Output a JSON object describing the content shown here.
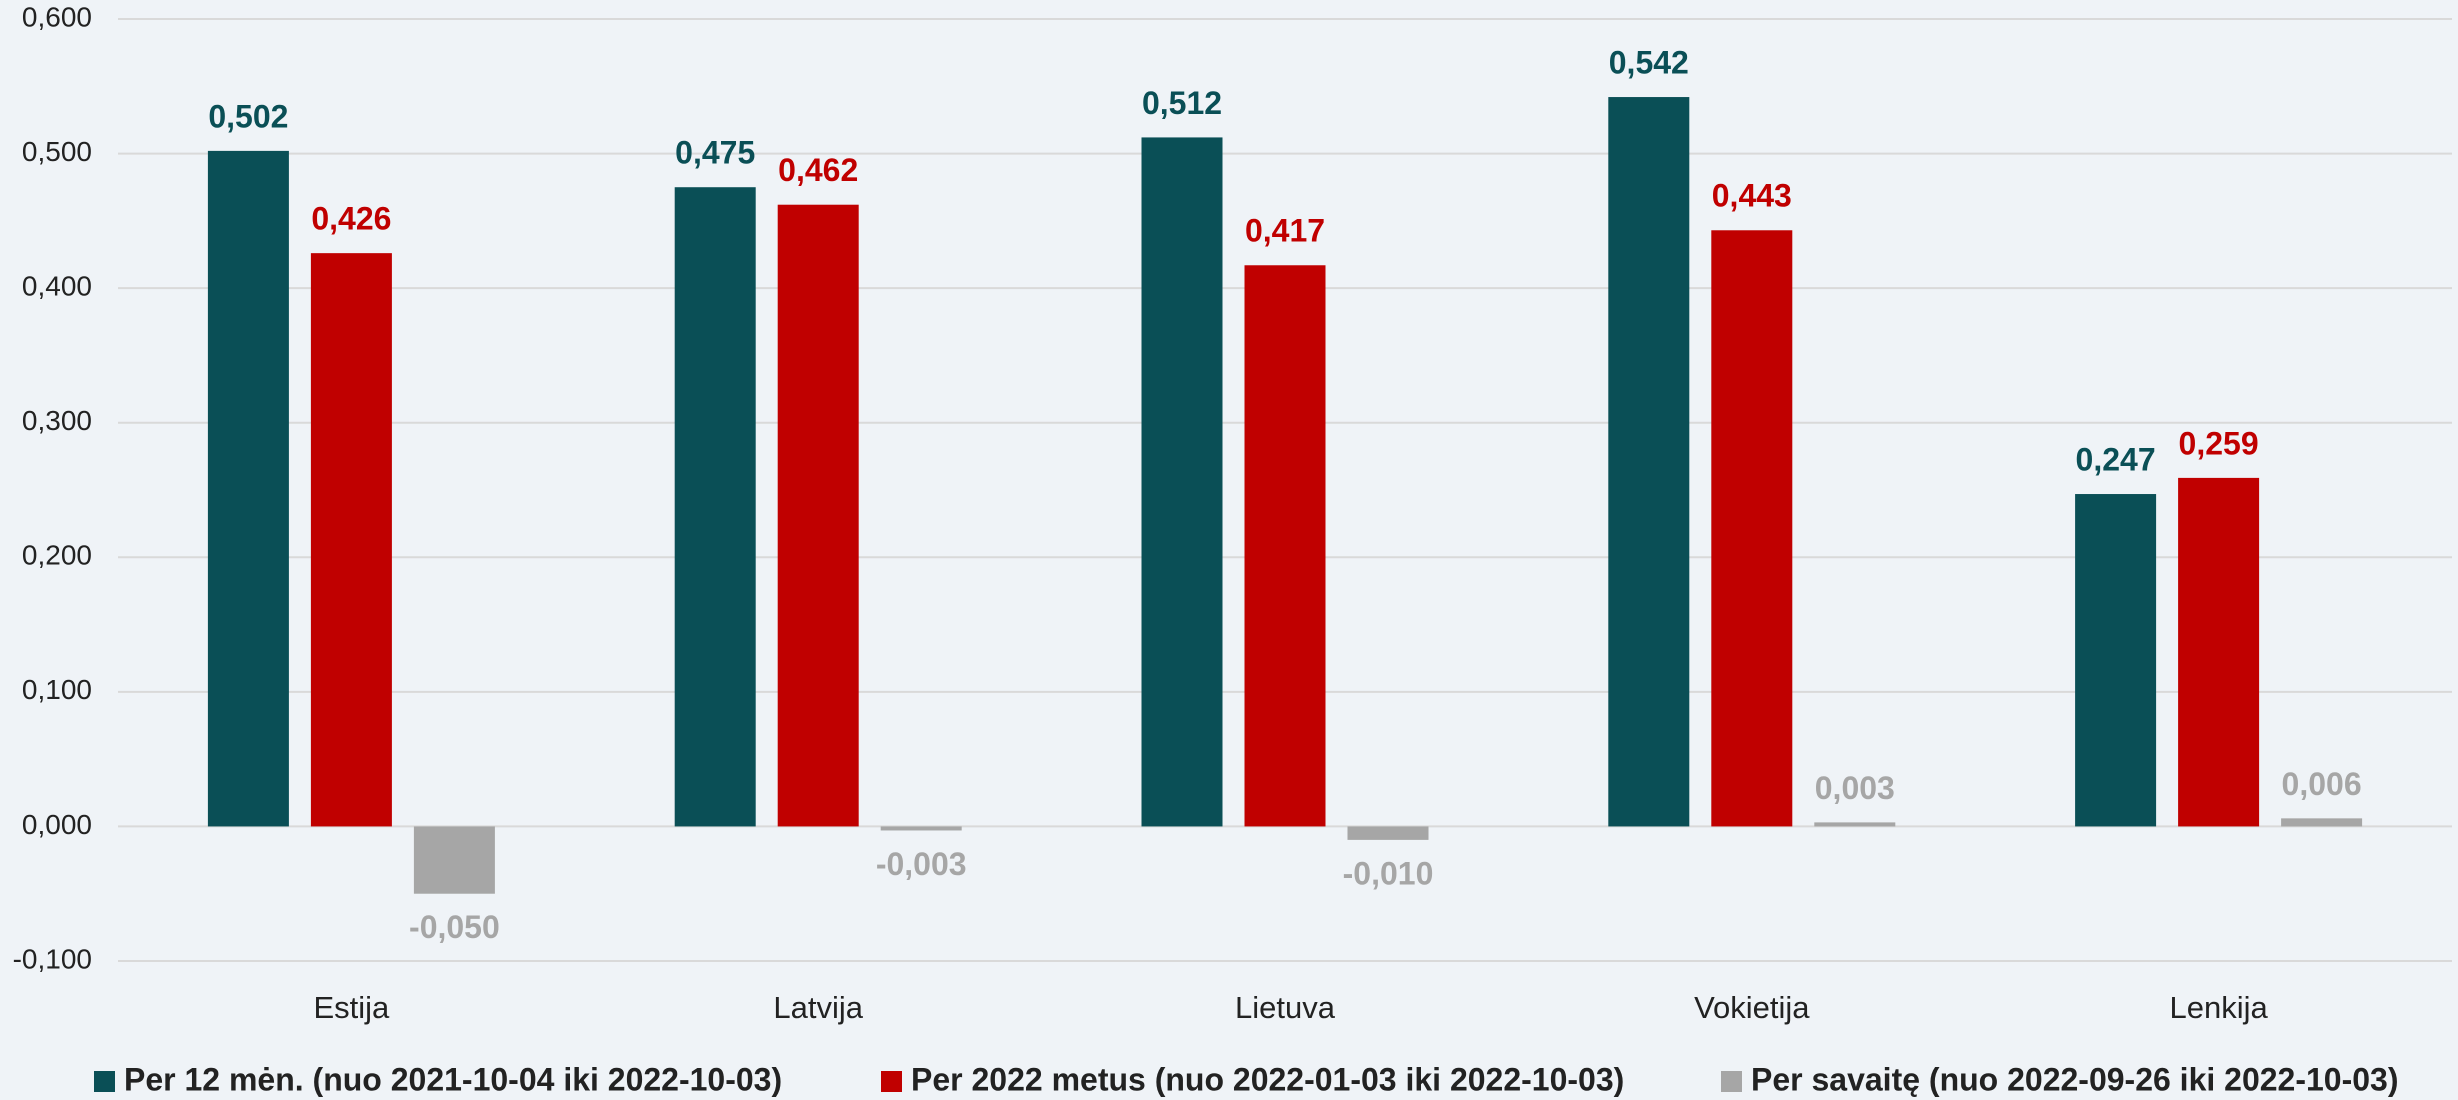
{
  "chart_data": {
    "type": "bar",
    "categories": [
      "Estija",
      "Latvija",
      "Lietuva",
      "Vokietija",
      "Lenkija"
    ],
    "series": [
      {
        "name": "Per 12 mėn. (nuo 2021-10-04 iki 2022-10-03)",
        "color": "#0a4f56",
        "values": [
          0.502,
          0.475,
          0.512,
          0.542,
          0.247
        ],
        "value_labels": [
          "0,502",
          "0,475",
          "0,512",
          "0,542",
          "0,247"
        ]
      },
      {
        "name": "Per 2022 metus (nuo 2022-01-03 iki 2022-10-03)",
        "color": "#c00000",
        "values": [
          0.426,
          0.462,
          0.417,
          0.443,
          0.259
        ],
        "value_labels": [
          "0,426",
          "0,462",
          "0,417",
          "0,443",
          "0,259"
        ]
      },
      {
        "name": "Per savaitę (nuo 2022-09-26 iki 2022-10-03)",
        "color": "#a6a6a6",
        "values": [
          -0.05,
          -0.003,
          -0.01,
          0.003,
          0.006
        ],
        "value_labels": [
          "-0,050",
          "-0,003",
          "-0,010",
          "0,003",
          "0,006"
        ]
      }
    ],
    "ylim": [
      -0.1,
      0.6
    ],
    "yticks": [
      {
        "value": -0.1,
        "label": "-0,100"
      },
      {
        "value": 0,
        "label": "0,000"
      },
      {
        "value": 0.1,
        "label": "0,100"
      },
      {
        "value": 0.2,
        "label": "0,200"
      },
      {
        "value": 0.3,
        "label": "0,300"
      },
      {
        "value": 0.4,
        "label": "0,400"
      },
      {
        "value": 0.5,
        "label": "0,500"
      },
      {
        "value": 0.6,
        "label": "0,600"
      }
    ],
    "grid": true,
    "legend": "bottom"
  }
}
